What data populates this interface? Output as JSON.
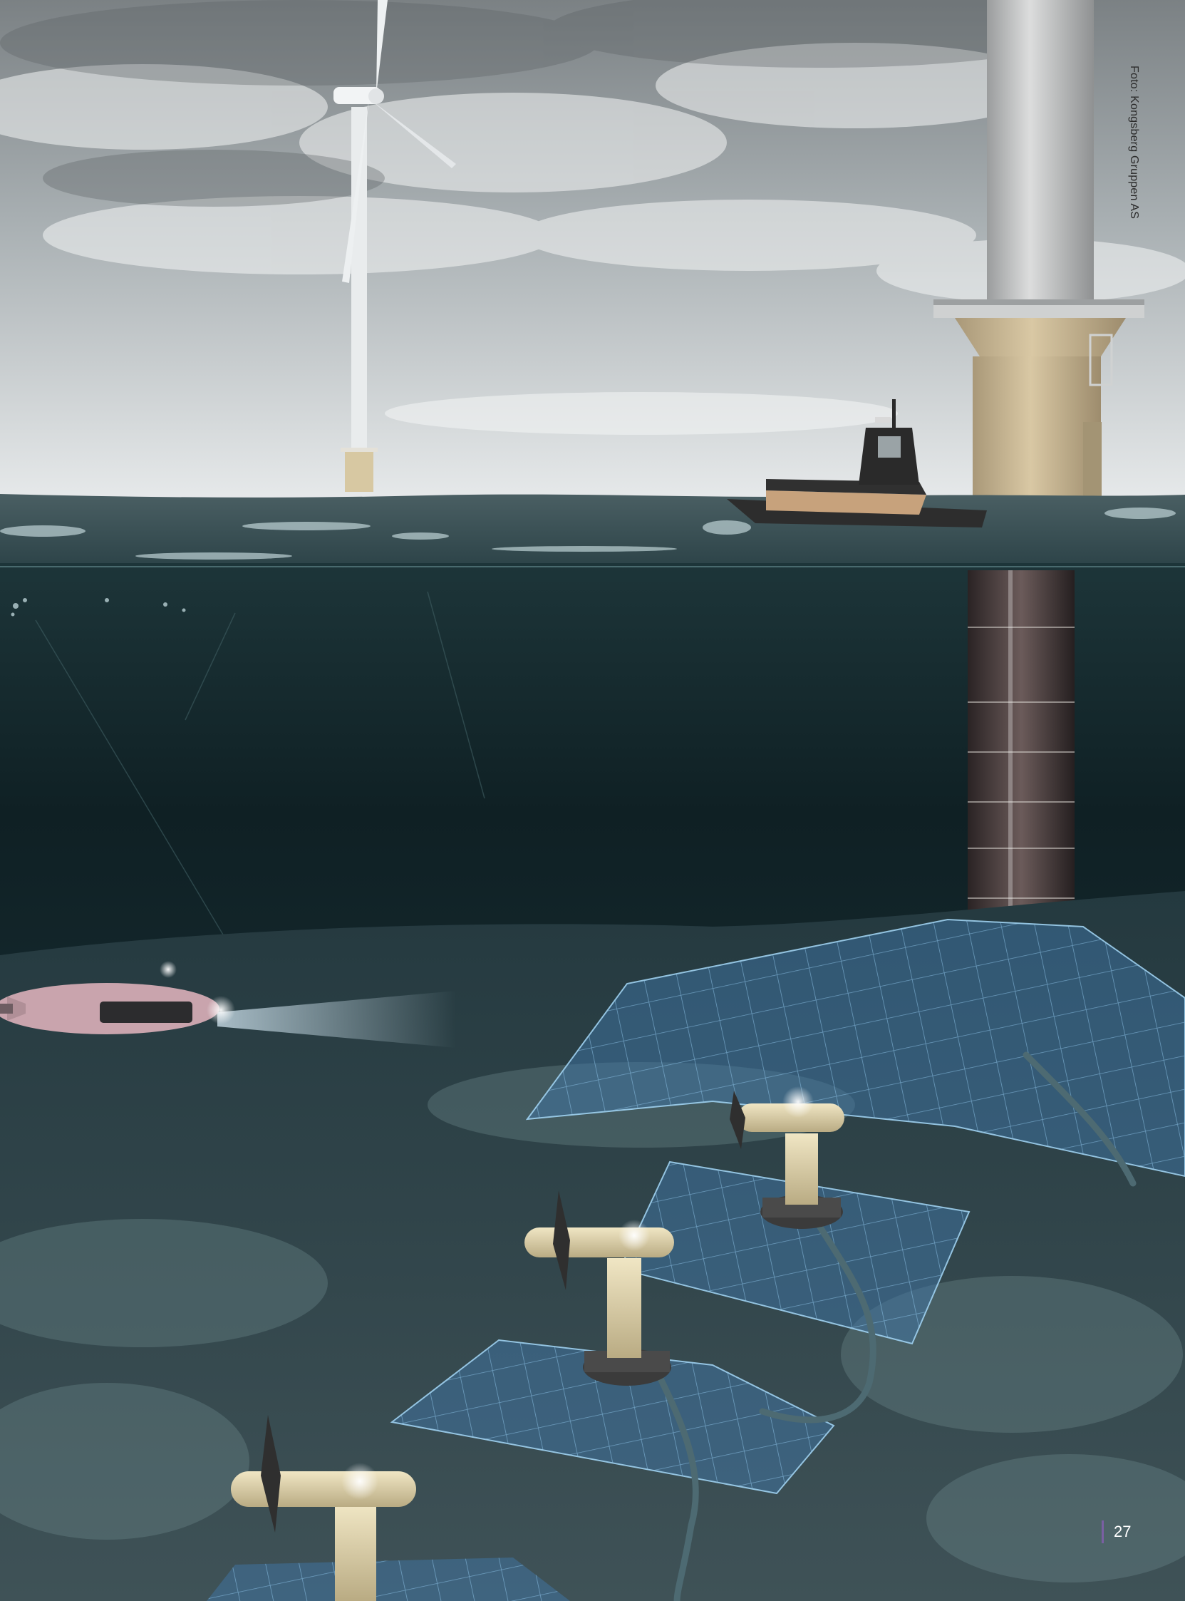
{
  "photo_credit": "Foto: Kongsberg Gruppen AS",
  "page_number": "27",
  "colors": {
    "sky_top": "#7f8588",
    "sky_bottom": "#e4e7e8",
    "sea_surface": "#3d5358",
    "deep_water": "#0f2125",
    "seabed": "#33474c",
    "grid_overlay": "#4f86b8",
    "turbine_body": "#d8cba0",
    "accent_bar": "#7a5fa3"
  },
  "icons": [
    "wind-turbine-icon",
    "offshore-foundation-icon",
    "vessel-icon",
    "auv-icon",
    "tidal-turbine-icon"
  ]
}
